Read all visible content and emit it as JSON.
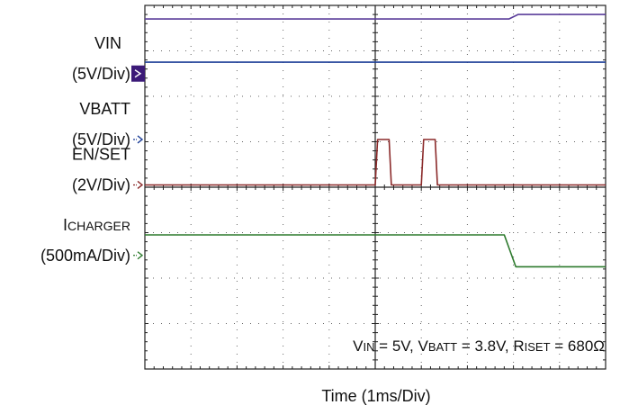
{
  "chart_data": {
    "type": "line",
    "xlabel": "Time (1ms/Div)",
    "x_divisions": 10,
    "y_divisions": 8,
    "x_range_ms": [
      0,
      10
    ],
    "grid": true,
    "annotation": {
      "vin_label": "V",
      "vin_sub": "IN",
      "vin_val": " = 5V, V",
      "vbatt_sub": "BATT",
      "vbatt_val": " = 3.8V, R",
      "riset_sub": "ISET",
      "riset_val": " = 680Ω"
    },
    "channels": [
      {
        "key": "vin",
        "label_lines": [
          "VIN",
          "(5V/Div)"
        ],
        "color": "#5a3d9a",
        "marker": "filled",
        "marker_div": 2.5,
        "points": [
          [
            0,
            3.7
          ],
          [
            7.9,
            3.7
          ],
          [
            8.1,
            3.8
          ],
          [
            10,
            3.8
          ]
        ]
      },
      {
        "key": "vbatt",
        "label_lines": [
          "VBATT",
          "(5V/Div)"
        ],
        "color": "#1d3f97",
        "marker": "arrow",
        "marker_div": 1.05,
        "points": [
          [
            0,
            2.75
          ],
          [
            10,
            2.75
          ]
        ]
      },
      {
        "key": "en",
        "label_lines": [
          "EN/SET",
          "(2V/Div)"
        ],
        "color": "#8b2a2a",
        "marker": "arrow",
        "marker_div": 0.05,
        "points": [
          [
            0,
            0.05
          ],
          [
            5,
            0.05
          ],
          [
            5.05,
            1.05
          ],
          [
            5.3,
            1.05
          ],
          [
            5.35,
            0.05
          ],
          [
            6.0,
            0.05
          ],
          [
            6.05,
            1.05
          ],
          [
            6.3,
            1.05
          ],
          [
            6.35,
            0.05
          ],
          [
            10,
            0.05
          ]
        ]
      },
      {
        "key": "icharger",
        "label_main": "I",
        "label_sub": "CHARGER",
        "label_line2": "(500mA/Div)",
        "color": "#2d7a2d",
        "marker": "arrow",
        "marker_div": -1.5,
        "points": [
          [
            0,
            -1.05
          ],
          [
            7.8,
            -1.05
          ],
          [
            8.05,
            -1.75
          ],
          [
            10,
            -1.75
          ]
        ]
      }
    ]
  }
}
